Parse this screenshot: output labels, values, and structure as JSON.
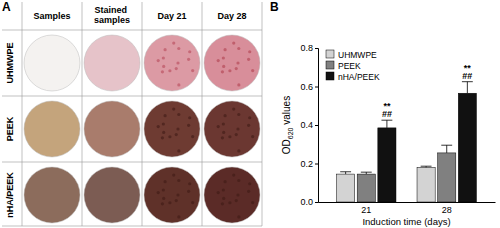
{
  "figure": {
    "panel_labels": [
      "A",
      "B"
    ]
  },
  "panel_a": {
    "columns": [
      "Samples",
      "Stained samples",
      "Day 21",
      "Day 28"
    ],
    "rows": [
      "UHMWPE",
      "PEEK",
      "nHA/PEEK"
    ]
  },
  "chart_data": {
    "type": "bar",
    "x_label": "Induction time (days)",
    "y_label": "OD620 values",
    "categories": [
      "21",
      "28"
    ],
    "series": [
      {
        "name": "UHMWPE",
        "color": "#d3d3d3",
        "values": [
          0.145,
          0.18
        ],
        "errors": [
          0.012,
          0.006
        ]
      },
      {
        "name": "PEEK",
        "color": "#808080",
        "values": [
          0.145,
          0.255
        ],
        "errors": [
          0.01,
          0.04
        ]
      },
      {
        "name": "nHA/PEEK",
        "color": "#111111",
        "values": [
          0.385,
          0.565
        ],
        "errors": [
          0.04,
          0.06
        ]
      }
    ],
    "annotations": [
      {
        "text": "**",
        "series": "nHA/PEEK",
        "category": "21"
      },
      {
        "text": "##",
        "series": "nHA/PEEK",
        "category": "21"
      },
      {
        "text": "**",
        "series": "nHA/PEEK",
        "category": "28"
      },
      {
        "text": "##",
        "series": "nHA/PEEK",
        "category": "28"
      }
    ],
    "ylim": [
      0,
      0.8
    ],
    "yticks": [
      {
        "value": 0,
        "label": "0.0"
      },
      {
        "value": 0.2,
        "label": "0.2"
      },
      {
        "value": 0.4,
        "label": "0.4"
      },
      {
        "value": 0.6,
        "label": "0.6"
      },
      {
        "value": 0.8,
        "label": "0.8"
      }
    ],
    "grid": false,
    "legend": "top-left"
  }
}
